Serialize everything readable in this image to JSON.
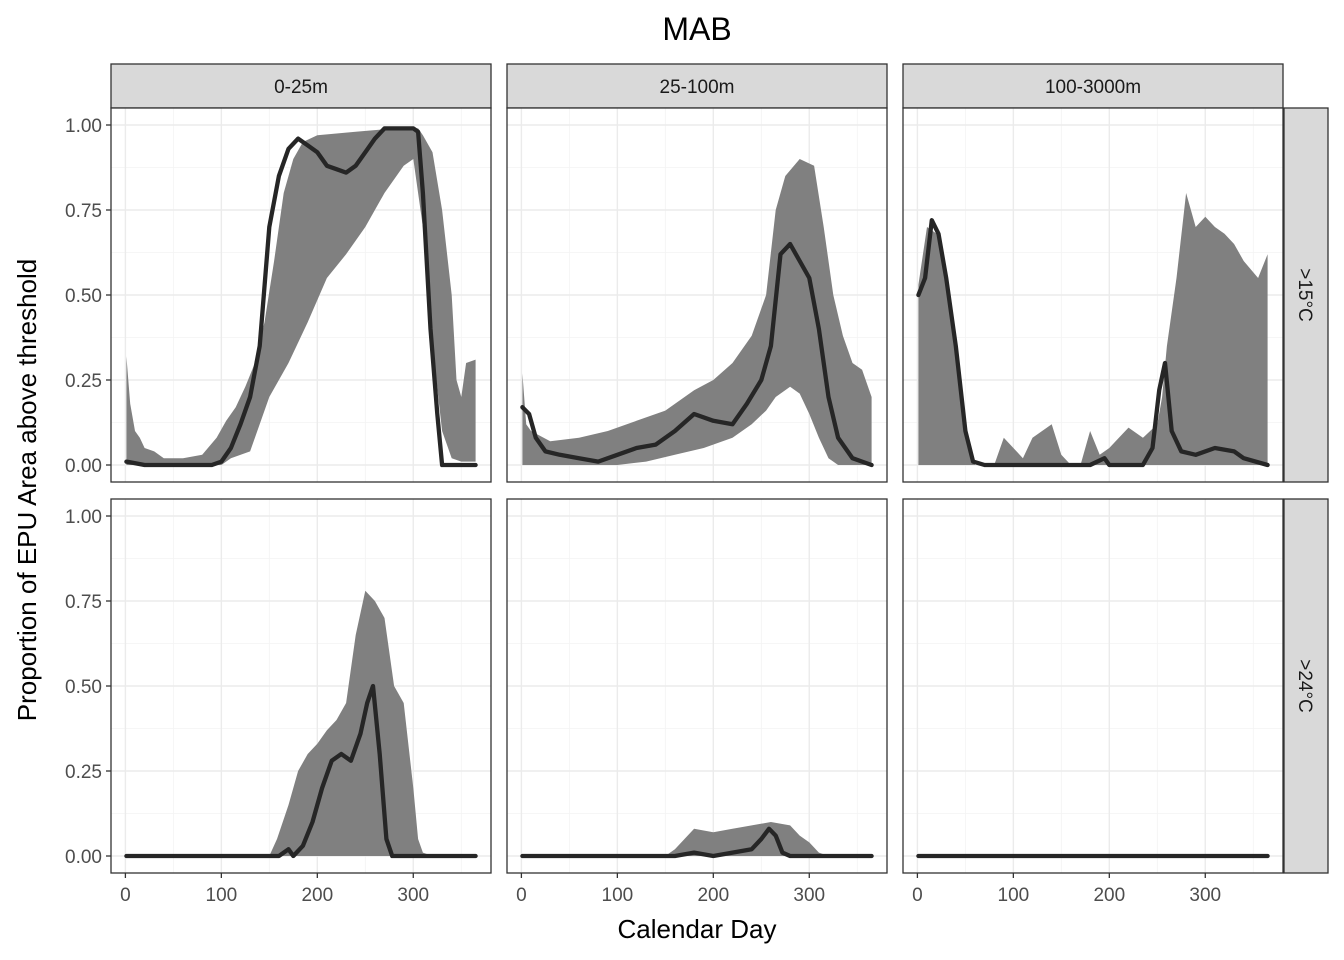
{
  "chart_data": {
    "type": "area",
    "title": "MAB",
    "xlabel": "Calendar Day",
    "ylabel": "Proportion of EPU Area above threshold",
    "xlim": [
      -15,
      381
    ],
    "ylim": [
      -0.05,
      1.05
    ],
    "x_ticks": [
      0,
      100,
      200,
      300
    ],
    "y_ticks": [
      0.0,
      0.25,
      0.5,
      0.75,
      1.0
    ],
    "x_tick_labels": [
      "0",
      "100",
      "200",
      "300"
    ],
    "y_tick_labels": [
      "0.00",
      "0.25",
      "0.50",
      "0.75",
      "1.00"
    ],
    "grid": true,
    "column_labels": [
      "0-25m",
      "25-100m",
      "100-3000m"
    ],
    "row_labels": [
      ">15°C",
      ">24°C"
    ],
    "panels": [
      {
        "row": 0,
        "col": 0,
        "band_lower": [
          [
            1,
            0
          ],
          [
            100,
            0
          ],
          [
            110,
            0.02
          ],
          [
            130,
            0.04
          ],
          [
            150,
            0.2
          ],
          [
            170,
            0.3
          ],
          [
            190,
            0.42
          ],
          [
            210,
            0.55
          ],
          [
            230,
            0.62
          ],
          [
            250,
            0.7
          ],
          [
            270,
            0.8
          ],
          [
            290,
            0.88
          ],
          [
            300,
            0.9
          ],
          [
            310,
            0.7
          ],
          [
            320,
            0.35
          ],
          [
            330,
            0.1
          ],
          [
            340,
            0.02
          ],
          [
            350,
            0.01
          ],
          [
            365,
            0.01
          ]
        ],
        "band_upper": [
          [
            1,
            0.32
          ],
          [
            5,
            0.18
          ],
          [
            10,
            0.1
          ],
          [
            15,
            0.08
          ],
          [
            20,
            0.05
          ],
          [
            30,
            0.04
          ],
          [
            40,
            0.02
          ],
          [
            60,
            0.02
          ],
          [
            80,
            0.03
          ],
          [
            95,
            0.08
          ],
          [
            105,
            0.13
          ],
          [
            115,
            0.17
          ],
          [
            125,
            0.23
          ],
          [
            135,
            0.3
          ],
          [
            145,
            0.42
          ],
          [
            155,
            0.6
          ],
          [
            165,
            0.8
          ],
          [
            175,
            0.9
          ],
          [
            185,
            0.95
          ],
          [
            200,
            0.97
          ],
          [
            240,
            0.98
          ],
          [
            280,
            0.99
          ],
          [
            305,
            0.99
          ],
          [
            310,
            0.97
          ],
          [
            320,
            0.92
          ],
          [
            330,
            0.75
          ],
          [
            340,
            0.5
          ],
          [
            345,
            0.25
          ],
          [
            350,
            0.2
          ],
          [
            355,
            0.3
          ],
          [
            365,
            0.31
          ]
        ],
        "mean": [
          [
            1,
            0.01
          ],
          [
            20,
            0
          ],
          [
            90,
            0
          ],
          [
            100,
            0.01
          ],
          [
            110,
            0.05
          ],
          [
            120,
            0.12
          ],
          [
            130,
            0.2
          ],
          [
            140,
            0.35
          ],
          [
            150,
            0.7
          ],
          [
            160,
            0.85
          ],
          [
            170,
            0.93
          ],
          [
            180,
            0.96
          ],
          [
            190,
            0.94
          ],
          [
            200,
            0.92
          ],
          [
            210,
            0.88
          ],
          [
            220,
            0.87
          ],
          [
            230,
            0.86
          ],
          [
            240,
            0.88
          ],
          [
            250,
            0.92
          ],
          [
            260,
            0.96
          ],
          [
            270,
            0.99
          ],
          [
            300,
            0.99
          ],
          [
            305,
            0.98
          ],
          [
            310,
            0.8
          ],
          [
            318,
            0.4
          ],
          [
            325,
            0.15
          ],
          [
            330,
            0
          ],
          [
            365,
            0
          ]
        ]
      },
      {
        "row": 0,
        "col": 1,
        "band_lower": [
          [
            1,
            0
          ],
          [
            100,
            0
          ],
          [
            130,
            0.01
          ],
          [
            160,
            0.03
          ],
          [
            190,
            0.05
          ],
          [
            220,
            0.08
          ],
          [
            240,
            0.12
          ],
          [
            255,
            0.16
          ],
          [
            265,
            0.2
          ],
          [
            280,
            0.23
          ],
          [
            290,
            0.21
          ],
          [
            300,
            0.15
          ],
          [
            310,
            0.08
          ],
          [
            320,
            0.02
          ],
          [
            330,
            0
          ],
          [
            365,
            0
          ]
        ],
        "band_upper": [
          [
            1,
            0.27
          ],
          [
            5,
            0.12
          ],
          [
            10,
            0.1
          ],
          [
            30,
            0.07
          ],
          [
            60,
            0.08
          ],
          [
            90,
            0.1
          ],
          [
            120,
            0.13
          ],
          [
            150,
            0.16
          ],
          [
            180,
            0.22
          ],
          [
            200,
            0.25
          ],
          [
            220,
            0.3
          ],
          [
            240,
            0.38
          ],
          [
            255,
            0.5
          ],
          [
            265,
            0.75
          ],
          [
            275,
            0.85
          ],
          [
            290,
            0.9
          ],
          [
            305,
            0.88
          ],
          [
            315,
            0.7
          ],
          [
            325,
            0.5
          ],
          [
            335,
            0.38
          ],
          [
            345,
            0.3
          ],
          [
            355,
            0.28
          ],
          [
            365,
            0.2
          ]
        ],
        "mean": [
          [
            1,
            0.17
          ],
          [
            8,
            0.15
          ],
          [
            15,
            0.08
          ],
          [
            25,
            0.04
          ],
          [
            40,
            0.03
          ],
          [
            60,
            0.02
          ],
          [
            80,
            0.01
          ],
          [
            100,
            0.03
          ],
          [
            120,
            0.05
          ],
          [
            140,
            0.06
          ],
          [
            160,
            0.1
          ],
          [
            180,
            0.15
          ],
          [
            200,
            0.13
          ],
          [
            220,
            0.12
          ],
          [
            235,
            0.18
          ],
          [
            250,
            0.25
          ],
          [
            260,
            0.35
          ],
          [
            270,
            0.62
          ],
          [
            280,
            0.65
          ],
          [
            290,
            0.6
          ],
          [
            300,
            0.55
          ],
          [
            310,
            0.4
          ],
          [
            320,
            0.2
          ],
          [
            330,
            0.08
          ],
          [
            345,
            0.02
          ],
          [
            355,
            0.01
          ],
          [
            365,
            0
          ]
        ]
      },
      {
        "row": 0,
        "col": 2,
        "band_lower": [
          [
            1,
            0
          ],
          [
            365,
            0
          ]
        ],
        "band_upper": [
          [
            1,
            0.53
          ],
          [
            10,
            0.7
          ],
          [
            20,
            0.68
          ],
          [
            30,
            0.55
          ],
          [
            40,
            0.35
          ],
          [
            50,
            0.1
          ],
          [
            60,
            0
          ],
          [
            80,
            0
          ],
          [
            90,
            0.08
          ],
          [
            100,
            0.05
          ],
          [
            110,
            0.02
          ],
          [
            120,
            0.08
          ],
          [
            130,
            0.1
          ],
          [
            140,
            0.12
          ],
          [
            150,
            0.03
          ],
          [
            160,
            0
          ],
          [
            170,
            0
          ],
          [
            180,
            0.1
          ],
          [
            190,
            0.03
          ],
          [
            200,
            0.05
          ],
          [
            210,
            0.08
          ],
          [
            220,
            0.11
          ],
          [
            235,
            0.08
          ],
          [
            250,
            0.12
          ],
          [
            255,
            0.2
          ],
          [
            260,
            0.35
          ],
          [
            270,
            0.55
          ],
          [
            280,
            0.8
          ],
          [
            290,
            0.7
          ],
          [
            300,
            0.73
          ],
          [
            310,
            0.7
          ],
          [
            320,
            0.68
          ],
          [
            330,
            0.65
          ],
          [
            340,
            0.6
          ],
          [
            355,
            0.55
          ],
          [
            365,
            0.62
          ]
        ],
        "mean": [
          [
            1,
            0.5
          ],
          [
            8,
            0.55
          ],
          [
            15,
            0.72
          ],
          [
            22,
            0.68
          ],
          [
            30,
            0.55
          ],
          [
            40,
            0.35
          ],
          [
            50,
            0.1
          ],
          [
            58,
            0.01
          ],
          [
            70,
            0
          ],
          [
            180,
            0
          ],
          [
            195,
            0.02
          ],
          [
            200,
            0
          ],
          [
            235,
            0
          ],
          [
            245,
            0.05
          ],
          [
            252,
            0.22
          ],
          [
            258,
            0.3
          ],
          [
            265,
            0.1
          ],
          [
            275,
            0.04
          ],
          [
            290,
            0.03
          ],
          [
            310,
            0.05
          ],
          [
            330,
            0.04
          ],
          [
            340,
            0.02
          ],
          [
            365,
            0
          ]
        ]
      },
      {
        "row": 1,
        "col": 0,
        "band_lower": [
          [
            1,
            0
          ],
          [
            365,
            0
          ]
        ],
        "band_upper": [
          [
            1,
            0
          ],
          [
            150,
            0
          ],
          [
            158,
            0.05
          ],
          [
            170,
            0.15
          ],
          [
            180,
            0.25
          ],
          [
            190,
            0.3
          ],
          [
            200,
            0.33
          ],
          [
            210,
            0.37
          ],
          [
            220,
            0.4
          ],
          [
            230,
            0.45
          ],
          [
            240,
            0.65
          ],
          [
            250,
            0.78
          ],
          [
            260,
            0.75
          ],
          [
            270,
            0.7
          ],
          [
            280,
            0.5
          ],
          [
            290,
            0.45
          ],
          [
            300,
            0.2
          ],
          [
            305,
            0.05
          ],
          [
            310,
            0.01
          ],
          [
            320,
            0
          ],
          [
            365,
            0
          ]
        ],
        "mean": [
          [
            1,
            0
          ],
          [
            160,
            0
          ],
          [
            170,
            0.02
          ],
          [
            175,
            0
          ],
          [
            185,
            0.03
          ],
          [
            195,
            0.1
          ],
          [
            205,
            0.2
          ],
          [
            215,
            0.28
          ],
          [
            225,
            0.3
          ],
          [
            235,
            0.28
          ],
          [
            245,
            0.36
          ],
          [
            252,
            0.45
          ],
          [
            258,
            0.5
          ],
          [
            265,
            0.3
          ],
          [
            272,
            0.05
          ],
          [
            278,
            0
          ],
          [
            365,
            0
          ]
        ]
      },
      {
        "row": 1,
        "col": 1,
        "band_lower": [
          [
            1,
            0
          ],
          [
            365,
            0
          ]
        ],
        "band_upper": [
          [
            1,
            0
          ],
          [
            150,
            0
          ],
          [
            160,
            0.02
          ],
          [
            170,
            0.05
          ],
          [
            180,
            0.08
          ],
          [
            200,
            0.07
          ],
          [
            220,
            0.08
          ],
          [
            240,
            0.09
          ],
          [
            260,
            0.1
          ],
          [
            280,
            0.09
          ],
          [
            290,
            0.06
          ],
          [
            300,
            0.04
          ],
          [
            310,
            0.01
          ],
          [
            320,
            0
          ],
          [
            365,
            0
          ]
        ],
        "mean": [
          [
            1,
            0
          ],
          [
            160,
            0
          ],
          [
            180,
            0.01
          ],
          [
            200,
            0
          ],
          [
            220,
            0.01
          ],
          [
            240,
            0.02
          ],
          [
            250,
            0.05
          ],
          [
            258,
            0.08
          ],
          [
            265,
            0.06
          ],
          [
            272,
            0.01
          ],
          [
            280,
            0
          ],
          [
            365,
            0
          ]
        ]
      },
      {
        "row": 1,
        "col": 2,
        "band_lower": [
          [
            1,
            0
          ],
          [
            365,
            0
          ]
        ],
        "band_upper": [
          [
            1,
            0
          ],
          [
            365,
            0
          ]
        ],
        "mean": [
          [
            1,
            0
          ],
          [
            365,
            0
          ]
        ]
      }
    ]
  }
}
